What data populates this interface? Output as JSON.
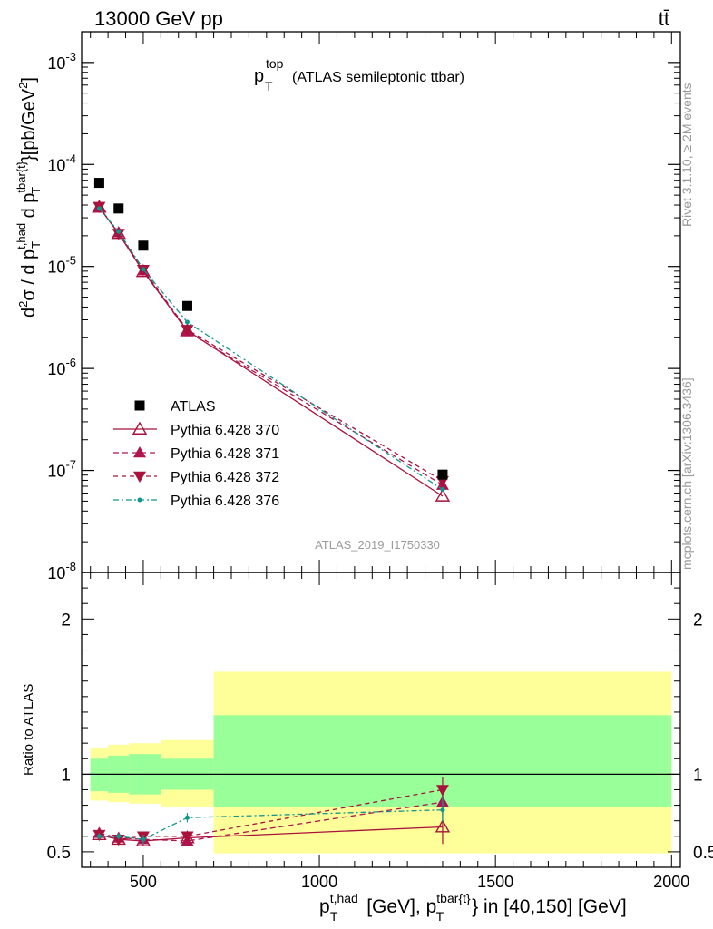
{
  "header": {
    "left": "13000 GeV pp",
    "right": "tt̄"
  },
  "plot_title": {
    "main": "p",
    "sup": "top",
    "sub": "T",
    "rest": "(ATLAS semileptonic ttbar)"
  },
  "side_labels": {
    "rivet": "Rivet 3.1.10, ≥ 2M events",
    "mcplots": "mcplots.cern.ch [arXiv:1306.3436]"
  },
  "analysis_id": "ATLAS_2019_I1750330",
  "colors": {
    "data": "#000000",
    "s370": "#a8123b",
    "s371": "#b0144f",
    "s372": "#a8123b",
    "s376": "#11968c",
    "band_inner": "#99ff99",
    "band_outer": "#ffff99"
  },
  "chart_data": [
    {
      "type": "scatter",
      "panel": "main",
      "xlabel": "p_T^{t,had} [GeV], p_T^{tbar{t}} in [40,150] [GeV]",
      "ylabel": "d²σ / d p_T^{t,had} d p_T^{tbar{t}}[pb/GeV²]",
      "xlim": [
        325,
        2025
      ],
      "ylim": [
        1e-08,
        0.002
      ],
      "yscale": "log",
      "y_tick_labels": [
        "10^-8",
        "10^-7",
        "10^-6",
        "10^-5",
        "10^-4",
        "10^-3"
      ],
      "x_tick_labels": [
        "500",
        "1000",
        "1500",
        "2000"
      ],
      "legend_position": "bottom-left",
      "series": [
        {
          "name": "ATLAS",
          "marker": "square",
          "x": [
            375,
            430,
            500,
            625,
            1350
          ],
          "y": [
            6.6e-05,
            3.7e-05,
            1.6e-05,
            4.1e-06,
            9.1e-08
          ]
        },
        {
          "name": "Pythia 6.428 370",
          "marker": "triangle-up-open",
          "line": "solid",
          "x": [
            375,
            430,
            500,
            625,
            1350
          ],
          "y": [
            3.8e-05,
            2.1e-05,
            8.9e-06,
            2.35e-06,
            5.6e-08
          ]
        },
        {
          "name": "Pythia 6.428 371",
          "marker": "triangle-up",
          "line": "dashed",
          "x": [
            375,
            430,
            500,
            625,
            1350
          ],
          "y": [
            3.75e-05,
            2.15e-05,
            9.1e-06,
            2.3e-06,
            7.2e-08
          ]
        },
        {
          "name": "Pythia 6.428 372",
          "marker": "triangle-down",
          "line": "dashed",
          "x": [
            375,
            430,
            500,
            625,
            1350
          ],
          "y": [
            3.85e-05,
            2.1e-05,
            9.3e-06,
            2.4e-06,
            7.9e-08
          ]
        },
        {
          "name": "Pythia 6.428 376",
          "marker": "dot",
          "line": "dashdot",
          "x": [
            375,
            430,
            500,
            625,
            1350
          ],
          "y": [
            3.7e-05,
            2.2e-05,
            9.4e-06,
            2.85e-06,
            6.5e-08
          ]
        }
      ]
    },
    {
      "type": "scatter",
      "panel": "ratio",
      "ylabel": "Ratio to ATLAS",
      "xlim": [
        325,
        2025
      ],
      "ylim": [
        0.4,
        2.3
      ],
      "y_tick_labels": [
        "0.5",
        "1",
        "2"
      ],
      "bands": [
        {
          "x0": 350,
          "x1": 400,
          "inner": [
            0.89,
            1.1
          ],
          "outer": [
            0.83,
            1.17
          ]
        },
        {
          "x0": 400,
          "x1": 460,
          "inner": [
            0.88,
            1.12
          ],
          "outer": [
            0.82,
            1.19
          ]
        },
        {
          "x0": 460,
          "x1": 550,
          "inner": [
            0.87,
            1.13
          ],
          "outer": [
            0.81,
            1.2
          ]
        },
        {
          "x0": 550,
          "x1": 700,
          "inner": [
            0.9,
            1.1
          ],
          "outer": [
            0.79,
            1.22
          ]
        },
        {
          "x0": 700,
          "x1": 2000,
          "inner": [
            0.79,
            1.38
          ],
          "outer": [
            0.49,
            1.66
          ]
        }
      ],
      "series": [
        {
          "name": "Pythia 6.428 370",
          "x": [
            375,
            430,
            500,
            625,
            1350
          ],
          "y": [
            0.61,
            0.58,
            0.57,
            0.59,
            0.66
          ],
          "err": [
            0.02,
            0.02,
            0.03,
            0.03,
            0.11
          ]
        },
        {
          "name": "Pythia 6.428 371",
          "x": [
            375,
            430,
            500,
            625,
            1350
          ],
          "y": [
            0.62,
            0.59,
            0.58,
            0.57,
            0.82
          ],
          "err": [
            0.02,
            0.02,
            0.03,
            0.03,
            0.08
          ]
        },
        {
          "name": "Pythia 6.428 372",
          "x": [
            375,
            430,
            500,
            625,
            1350
          ],
          "y": [
            0.61,
            0.58,
            0.6,
            0.6,
            0.9
          ],
          "err": [
            0.02,
            0.02,
            0.03,
            0.03,
            0.08
          ]
        },
        {
          "name": "Pythia 6.428 376",
          "x": [
            375,
            430,
            500,
            625,
            1350
          ],
          "y": [
            0.6,
            0.6,
            0.58,
            0.72,
            0.77
          ],
          "err": [
            0.02,
            0.02,
            0.03,
            0.03,
            0.08
          ]
        }
      ]
    }
  ]
}
